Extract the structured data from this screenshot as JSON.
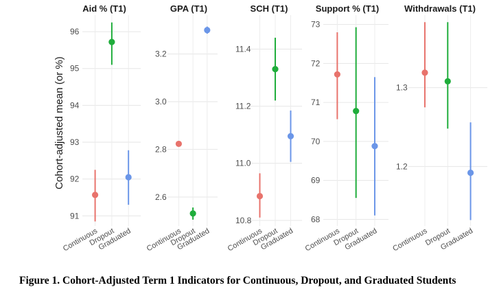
{
  "chart_data": {
    "type": "scatter",
    "style": "point-range (mean with interval) small multiples",
    "ylabel": "Cohort-adjusted mean (or %)",
    "categories": [
      "Continuous",
      "Dropout",
      "Graduated"
    ],
    "colors": {
      "Continuous": "#E8736C",
      "Dropout": "#1FAD3B",
      "Graduated": "#6B96E8"
    },
    "grid": true,
    "legend": "none",
    "facets": [
      {
        "title": "Aid % (T1)",
        "ylim": [
          90.8,
          96.3
        ],
        "yticks": [
          "91",
          "92",
          "93",
          "94",
          "95",
          "96"
        ],
        "points": [
          {
            "category": "Continuous",
            "mean": 91.57,
            "lower": 90.85,
            "upper": 92.25
          },
          {
            "category": "Dropout",
            "mean": 95.72,
            "lower": 95.1,
            "upper": 96.25
          },
          {
            "category": "Graduated",
            "mean": 92.05,
            "lower": 91.3,
            "upper": 92.78
          }
        ]
      },
      {
        "title": "GPA (T1)",
        "ylim": [
          2.49,
          3.34
        ],
        "yticks": [
          "2.6",
          "2.8",
          "3.0",
          "3.2"
        ],
        "points": [
          {
            "category": "Continuous",
            "mean": 2.823,
            "lower": 2.813,
            "upper": 2.833
          },
          {
            "category": "Dropout",
            "mean": 2.531,
            "lower": 2.505,
            "upper": 2.556
          },
          {
            "category": "Graduated",
            "mean": 3.3,
            "lower": 3.285,
            "upper": 3.315
          }
        ]
      },
      {
        "title": "SCH (T1)",
        "ylim": [
          10.79,
          11.5
        ],
        "yticks": [
          "10.8",
          "11.0",
          "11.2",
          "11.4"
        ],
        "points": [
          {
            "category": "Continuous",
            "mean": 10.885,
            "lower": 10.81,
            "upper": 10.965
          },
          {
            "category": "Dropout",
            "mean": 11.33,
            "lower": 11.22,
            "upper": 11.44
          },
          {
            "category": "Graduated",
            "mean": 11.095,
            "lower": 11.005,
            "upper": 11.185
          }
        ]
      },
      {
        "title": "Support % (T1)",
        "ylim": [
          67.9,
          73.1
        ],
        "yticks": [
          "68",
          "69",
          "70",
          "71",
          "72",
          "73"
        ],
        "points": [
          {
            "category": "Continuous",
            "mean": 71.72,
            "lower": 70.57,
            "upper": 72.8
          },
          {
            "category": "Dropout",
            "mean": 70.78,
            "lower": 68.55,
            "upper": 72.93
          },
          {
            "category": "Graduated",
            "mean": 69.88,
            "lower": 68.1,
            "upper": 71.65
          }
        ]
      },
      {
        "title": "Withdrawals (T1)",
        "ylim": [
          1.128,
          1.385
        ],
        "yticks": [
          "1.2",
          "1.3"
        ],
        "points": [
          {
            "category": "Continuous",
            "mean": 1.319,
            "lower": 1.275,
            "upper": 1.383
          },
          {
            "category": "Dropout",
            "mean": 1.308,
            "lower": 1.248,
            "upper": 1.383
          },
          {
            "category": "Graduated",
            "mean": 1.192,
            "lower": 1.132,
            "upper": 1.256
          }
        ]
      }
    ]
  },
  "caption": "Figure 1. Cohort-Adjusted Term 1 Indicators for Continuous, Dropout, and Graduated Students"
}
